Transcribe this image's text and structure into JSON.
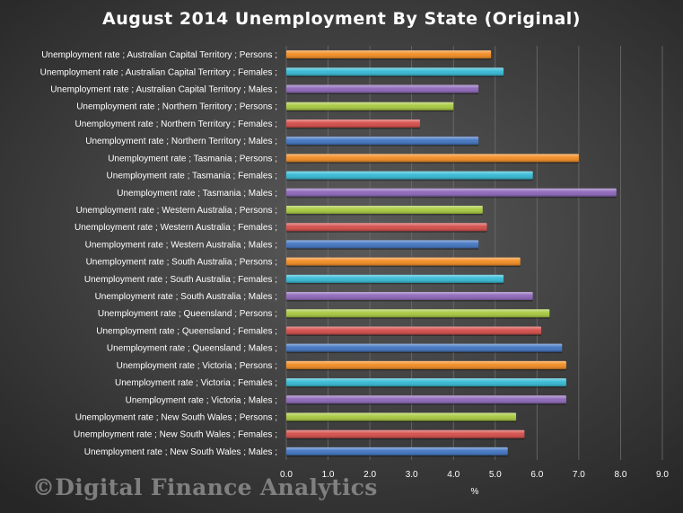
{
  "chart_data": {
    "type": "bar",
    "orientation": "horizontal",
    "title": "August 2014 Unemployment  By State (Original)",
    "xlabel": "%",
    "ylabel": "",
    "xlim": [
      0,
      9
    ],
    "x_ticks": [
      "0.0",
      "1.0",
      "2.0",
      "3.0",
      "4.0",
      "5.0",
      "6.0",
      "7.0",
      "8.0",
      "9.0"
    ],
    "grid": true,
    "legend": "none",
    "categories": [
      "Unemployment rate ;  Australian Capital Territory ;  Persons ;",
      "Unemployment rate ;  Australian Capital Territory ;  Females ;",
      "Unemployment rate ;  Australian Capital Territory ;  Males ;",
      "Unemployment rate ;  Northern Territory ;  Persons ;",
      "Unemployment rate ;  Northern Territory ;  Females ;",
      "Unemployment rate ;  Northern Territory ;  Males ;",
      "Unemployment rate ;  Tasmania ;  Persons ;",
      "Unemployment rate ;  Tasmania ;  Females ;",
      "Unemployment rate ;  Tasmania ;  Males ;",
      "Unemployment rate ;  Western Australia ;  Persons ;",
      "Unemployment rate ;  Western Australia ;  Females ;",
      "Unemployment rate ;  Western Australia ;  Males ;",
      "Unemployment rate ;  South Australia ;  Persons ;",
      "Unemployment rate ;  South Australia ;  Females ;",
      "Unemployment rate ;  South Australia ;  Males ;",
      "Unemployment rate ;  Queensland ;  Persons ;",
      "Unemployment rate ;  Queensland ;  Females ;",
      "Unemployment rate ;  Queensland ;  Males ;",
      "Unemployment rate ;  Victoria ;  Persons ;",
      "Unemployment rate ;  Victoria ;  Females ;",
      "Unemployment rate ;  Victoria ;  Males ;",
      "Unemployment rate ;  New South Wales ;  Persons ;",
      "Unemployment rate ;  New South Wales ;  Females ;",
      "Unemployment rate ;  New South Wales ;  Males ;"
    ],
    "values": [
      4.9,
      5.2,
      4.6,
      4.0,
      3.2,
      4.6,
      7.0,
      5.9,
      7.9,
      4.7,
      4.8,
      4.6,
      5.6,
      5.2,
      5.9,
      6.3,
      6.1,
      6.6,
      6.7,
      6.7,
      6.7,
      5.5,
      5.7,
      5.3
    ],
    "colors": [
      "#f28a1e",
      "#31b9d4",
      "#8b64b8",
      "#a6c83c",
      "#d44a46",
      "#3d72c0",
      "#f28a1e",
      "#31b9d4",
      "#8b64b8",
      "#a6c83c",
      "#d44a46",
      "#3d72c0",
      "#f28a1e",
      "#31b9d4",
      "#8b64b8",
      "#a6c83c",
      "#d44a46",
      "#3d72c0",
      "#f28a1e",
      "#31b9d4",
      "#8b64b8",
      "#a6c83c",
      "#d44a46",
      "#3d72c0"
    ]
  },
  "watermark": "©Digital Finance Analytics"
}
